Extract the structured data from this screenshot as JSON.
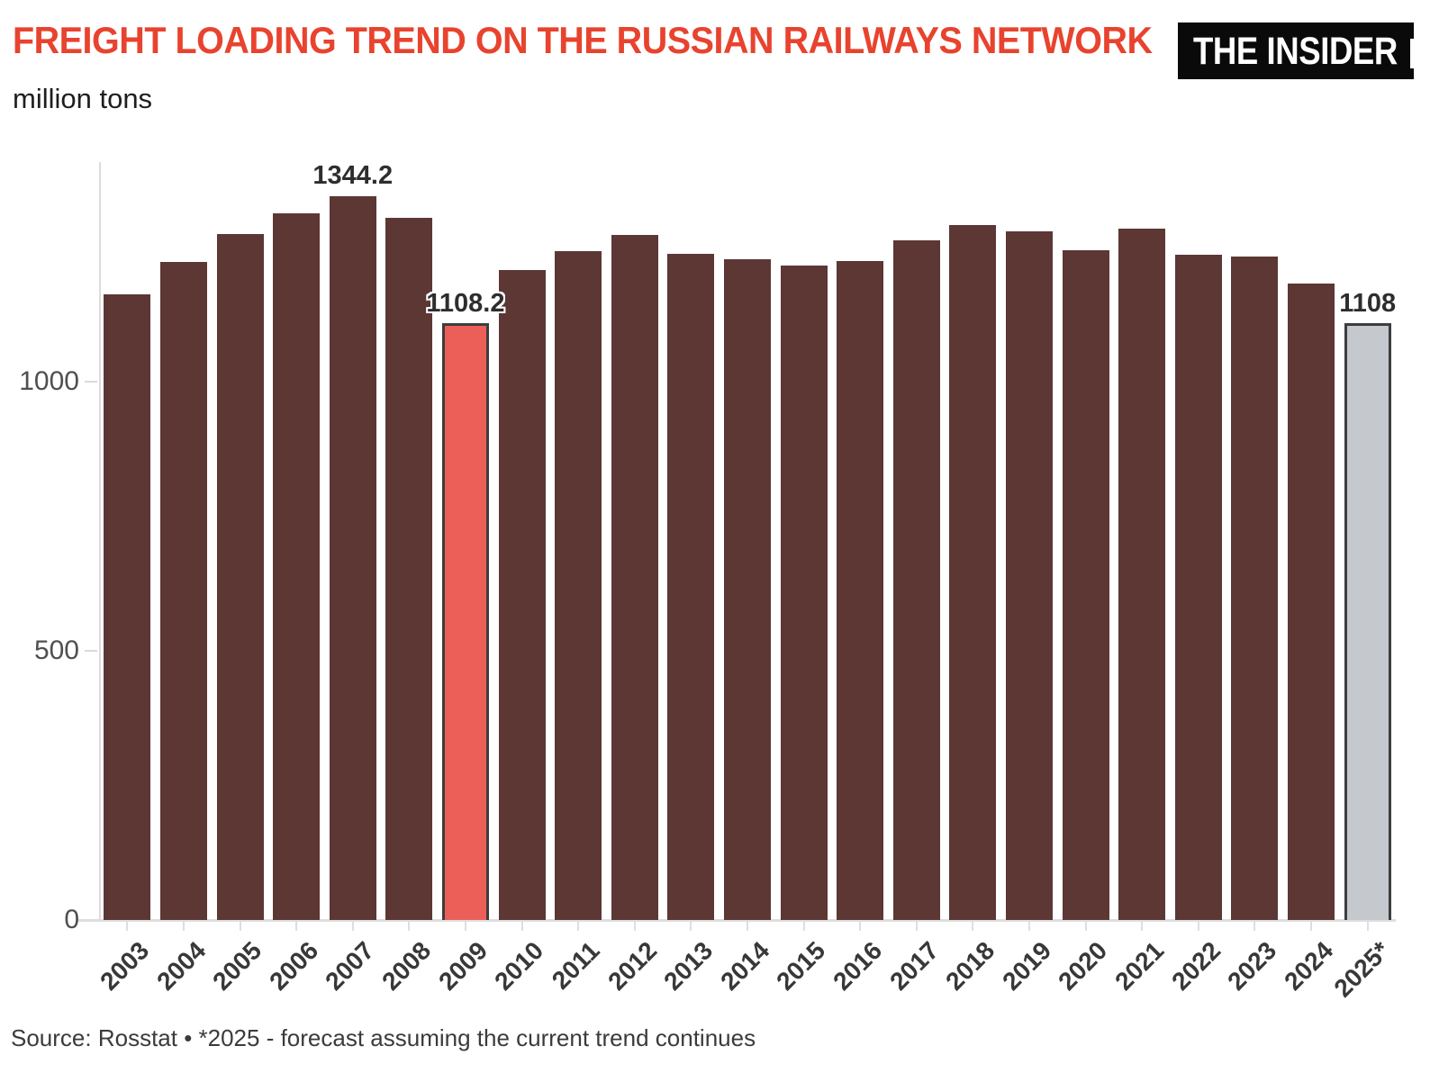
{
  "header": {
    "title": "FREIGHT LOADING TREND ON THE RUSSIAN RAILWAYS NETWORK",
    "subtitle": "million tons",
    "logo_text": "THE INSIDER"
  },
  "footer": {
    "source": "Source: Rosstat • *2025 - forecast assuming the current trend continues"
  },
  "chart_data": {
    "type": "bar",
    "title": "FREIGHT LOADING TREND ON THE RUSSIAN RAILWAYS NETWORK",
    "ylabel": "million tons",
    "categories": [
      "2003",
      "2004",
      "2005",
      "2006",
      "2007",
      "2008",
      "2009",
      "2010",
      "2011",
      "2012",
      "2013",
      "2014",
      "2015",
      "2016",
      "2017",
      "2018",
      "2019",
      "2020",
      "2021",
      "2022",
      "2023",
      "2024",
      "2025*"
    ],
    "values": [
      1160.8,
      1221.2,
      1273.2,
      1311.3,
      1344.2,
      1303.7,
      1108.2,
      1205.8,
      1241.5,
      1271.9,
      1236.8,
      1226.9,
      1214.5,
      1222.3,
      1261.3,
      1289.6,
      1278.1,
      1243.6,
      1282.9,
      1234.3,
      1232.0,
      1181.4,
      1108.0
    ],
    "annotations": [
      {
        "category": "2007",
        "label": "1344.2"
      },
      {
        "category": "2009",
        "label": "1108.2"
      },
      {
        "category": "2025*",
        "label": "1108"
      }
    ],
    "bar_color": "#5c3734",
    "highlight_colors": {
      "2009": "#ec5f58",
      "2025*": "#c5c8cd"
    },
    "highlight_border": "#3d3d3d",
    "yticks": [
      0,
      500,
      1000
    ],
    "ylim": [
      0,
      1407
    ],
    "grid": "off",
    "legend": "none"
  }
}
